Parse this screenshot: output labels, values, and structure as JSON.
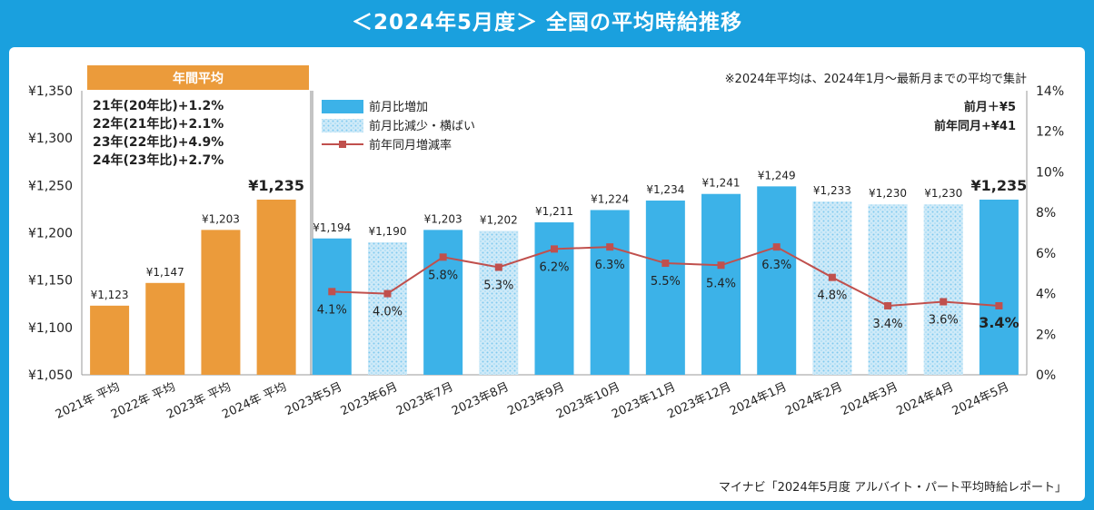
{
  "title": "＜2024年5月度＞ 全国の平均時給推移",
  "note": "※2024年平均は、2024年1月～最新月までの平均で集計",
  "source": "マイナビ「2024年5月度 アルバイト・パート平均時給レポート」",
  "annual_header": "年間平均",
  "annual_changes": [
    "21年(20年比)+1.2%",
    "22年(21年比)+2.1%",
    "23年(22年比)+4.9%",
    "24年(23年比)+2.7%"
  ],
  "latest_changes": {
    "mom": "前月＋¥5",
    "yoy": "前年同月+¥41"
  },
  "colors": {
    "frame": "#1aa0de",
    "annual_bar": "#eb9b3b",
    "monthly_bar": "#3cb2e8",
    "line": "#c0504d"
  },
  "chart_data": {
    "type": "bar",
    "categories": [
      "2021年 平均",
      "2022年 平均",
      "2023年 平均",
      "2024年 平均",
      "2023年5月",
      "2023年6月",
      "2023年7月",
      "2023年8月",
      "2023年9月",
      "2023年10月",
      "2023年11月",
      "2023年12月",
      "2024年1月",
      "2024年2月",
      "2024年3月",
      "2024年4月",
      "2024年5月"
    ],
    "bar_labels": [
      "¥1,123",
      "¥1,147",
      "¥1,203",
      "¥1,235",
      "¥1,194",
      "¥1,190",
      "¥1,203",
      "¥1,202",
      "¥1,211",
      "¥1,224",
      "¥1,234",
      "¥1,241",
      "¥1,249",
      "¥1,233",
      "¥1,230",
      "¥1,230",
      "¥1,235"
    ],
    "series": [
      {
        "name": "年間平均",
        "kind": "annual",
        "values": [
          1123,
          1147,
          1203,
          1235,
          null,
          null,
          null,
          null,
          null,
          null,
          null,
          null,
          null,
          null,
          null,
          null,
          null
        ]
      },
      {
        "name": "前月比増加",
        "kind": "increase",
        "values": [
          null,
          null,
          null,
          null,
          1194,
          null,
          1203,
          null,
          1211,
          1224,
          1234,
          1241,
          1249,
          null,
          null,
          null,
          1235
        ]
      },
      {
        "name": "前月比減少・横ばい",
        "kind": "decrease",
        "values": [
          null,
          null,
          null,
          null,
          null,
          1190,
          null,
          1202,
          null,
          null,
          null,
          null,
          null,
          1233,
          1230,
          1230,
          null
        ]
      },
      {
        "name": "前年同月増減率",
        "kind": "line",
        "axis": "right",
        "values": [
          null,
          null,
          null,
          null,
          4.1,
          4.0,
          5.8,
          5.3,
          6.2,
          6.3,
          5.5,
          5.4,
          6.3,
          4.8,
          3.4,
          3.6,
          3.4
        ]
      }
    ],
    "line_labels": [
      "4.1%",
      "4.0%",
      "5.8%",
      "5.3%",
      "6.2%",
      "6.3%",
      "5.5%",
      "5.4%",
      "6.3%",
      "4.8%",
      "3.4%",
      "3.6%",
      "3.4%"
    ],
    "ylim": [
      1050,
      1350
    ],
    "y_ticks": [
      "¥1,050",
      "¥1,100",
      "¥1,150",
      "¥1,200",
      "¥1,250",
      "¥1,300",
      "¥1,350"
    ],
    "y2lim": [
      0,
      14
    ],
    "y2_ticks": [
      "0%",
      "2%",
      "4%",
      "6%",
      "8%",
      "10%",
      "12%",
      "14%"
    ],
    "legend": [
      "前月比増加",
      "前月比減少・横ばい",
      "前年同月増減率"
    ]
  }
}
